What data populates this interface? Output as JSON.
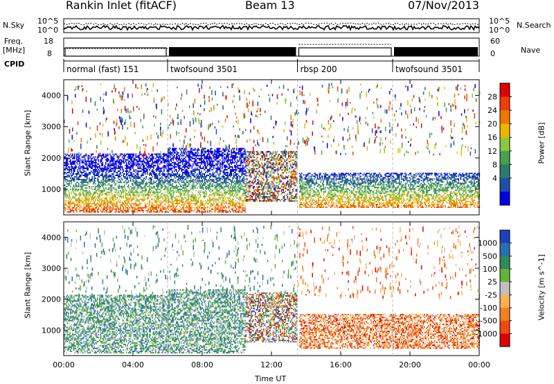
{
  "header": {
    "station": "Rankin Inlet (fitACF)",
    "beam": "Beam 13",
    "date": "07/Nov/2013"
  },
  "top_panels": {
    "nsky_label": "N.Sky",
    "nsearch_label": "N.Search",
    "nsky_ticks": [
      "10^5",
      "10^0"
    ],
    "nsearch_ticks": [
      "10^5",
      "10^0"
    ],
    "freq_label": "Freq.",
    "freq_unit": "[MHz]",
    "freq_ticks": [
      "18",
      "8"
    ],
    "nave_label": "Nave",
    "nave_ticks": [
      "60",
      "0"
    ],
    "cpid_label": "CPID",
    "cpid_segments": [
      {
        "label": "normal (fast) 151",
        "start": 0.0,
        "end": 6.0
      },
      {
        "label": "twofsound 3501",
        "start": 6.0,
        "end": 13.5
      },
      {
        "label": "rbsp 200",
        "start": 13.5,
        "end": 19.0
      },
      {
        "label": "twofsound 3501",
        "start": 19.0,
        "end": 24.0
      }
    ]
  },
  "x_axis": {
    "label": "Time UT",
    "ticks": [
      "00:00",
      "04:00",
      "08:00",
      "12:00",
      "16:00",
      "20:00",
      "00:00"
    ]
  },
  "chart_data": [
    {
      "type": "heatmap",
      "quantity": "Power",
      "ylabel": "Slant Range [km]",
      "xlabel": "Time UT",
      "xlim": [
        0,
        24
      ],
      "ylim": [
        180,
        4500
      ],
      "yticks": [
        "1000",
        "2000",
        "3000",
        "4000"
      ],
      "colorbar_label": "Power [dB]",
      "colorbar_ticks": [
        "28",
        "24",
        "20",
        "16",
        "12",
        "8",
        "4"
      ],
      "colorbar_range": [
        0,
        32
      ],
      "colors": [
        "#0000e0",
        "#1e4fa8",
        "#2e7a6a",
        "#46a050",
        "#8cc83c",
        "#f0b400",
        "#f07800",
        "#f03c00",
        "#e00000"
      ],
      "echo_regions": [
        {
          "t0": 0.0,
          "t1": 6.0,
          "r0": 250,
          "r1": 2100,
          "level": "strong"
        },
        {
          "t0": 6.0,
          "t1": 10.5,
          "r0": 250,
          "r1": 2300,
          "level": "strong"
        },
        {
          "t0": 10.5,
          "t1": 13.5,
          "r0": 600,
          "r1": 2200,
          "level": "mixed"
        },
        {
          "t0": 13.6,
          "t1": 19.0,
          "r0": 400,
          "r1": 1500,
          "level": "strong"
        },
        {
          "t0": 19.0,
          "t1": 24.0,
          "r0": 400,
          "r1": 1500,
          "level": "strong"
        }
      ]
    },
    {
      "type": "heatmap",
      "quantity": "Velocity",
      "ylabel": "Slant Range [km]",
      "xlabel": "Time UT",
      "xlim": [
        0,
        24
      ],
      "ylim": [
        180,
        4500
      ],
      "yticks": [
        "1000",
        "2000",
        "3000",
        "4000"
      ],
      "colorbar_label": "Velocity [m s^-1]",
      "colorbar_ticks": [
        "1000",
        "500",
        "100",
        "25",
        "-25",
        "-100",
        "-500",
        "-1000"
      ],
      "colorbar_range": [
        -1250,
        1250
      ],
      "colors": [
        "#1f3fbf",
        "#2a6fb0",
        "#2f8a5a",
        "#60b43c",
        "#c0c0c0",
        "#ffb050",
        "#f08020",
        "#f04a10",
        "#e00000"
      ],
      "echo_regions": [
        {
          "t0": 0.0,
          "t1": 6.0,
          "r0": 250,
          "r1": 2100,
          "level": "positive"
        },
        {
          "t0": 6.0,
          "t1": 10.5,
          "r0": 250,
          "r1": 2300,
          "level": "positive"
        },
        {
          "t0": 10.5,
          "t1": 13.5,
          "r0": 600,
          "r1": 2200,
          "level": "mixed"
        },
        {
          "t0": 13.6,
          "t1": 19.0,
          "r0": 400,
          "r1": 1500,
          "level": "negative"
        },
        {
          "t0": 19.0,
          "t1": 24.0,
          "r0": 400,
          "r1": 1500,
          "level": "negative"
        }
      ]
    }
  ]
}
